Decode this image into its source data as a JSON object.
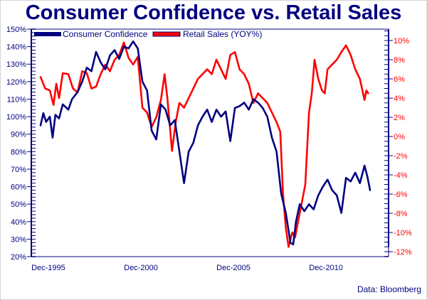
{
  "chart_data": {
    "type": "line",
    "title": "Consumer Confidence vs. Retail Sales",
    "source": "Data: Bloomberg",
    "x_tick_labels": [
      "Dec-1995",
      "Dec-2000",
      "Dec-2005",
      "Dec-2010"
    ],
    "x_tick_values": [
      1995.92,
      2000.92,
      2005.92,
      2010.92
    ],
    "xlim": [
      1995.0,
      2014.3
    ],
    "left_axis": {
      "ylim": [
        20,
        150
      ],
      "tick_values": [
        150,
        140,
        130,
        120,
        110,
        100,
        90,
        80,
        70,
        60,
        50,
        40,
        30,
        20
      ],
      "tick_labels": [
        "150%",
        "140%",
        "130%",
        "120%",
        "110%",
        "100%",
        "90%",
        "80%",
        "70%",
        "60%",
        "50%",
        "40%",
        "30%",
        "20%"
      ]
    },
    "right_axis": {
      "ylim": [
        -12,
        11.2
      ],
      "tick_values": [
        10,
        8,
        6,
        4,
        2,
        0,
        -2,
        -4,
        -6,
        -8,
        -10,
        -12
      ],
      "tick_labels": [
        "10%",
        "8%",
        "6%",
        "4%",
        "2%",
        "0%",
        "-2%",
        "-4%",
        "-6%",
        "-8%",
        "-10%",
        "-12%"
      ]
    },
    "legend": {
      "placement": "top-left",
      "entries": [
        "Consumer Confidence",
        "Retail Sales (YOY%)"
      ]
    },
    "colors": {
      "consumer_confidence": "#000080",
      "retail_sales": "#ff0000",
      "axis": "#000080",
      "frame": "#8080c0",
      "right_tick_label": "#ff0000"
    },
    "series": [
      {
        "name": "Consumer Confidence",
        "axis": "left",
        "x": [
          1995.5,
          1995.65,
          1995.8,
          1996.0,
          1996.15,
          1996.3,
          1996.5,
          1996.7,
          1997.0,
          1997.2,
          1997.5,
          1997.75,
          1998.0,
          1998.25,
          1998.5,
          1998.75,
          1999.0,
          1999.25,
          1999.5,
          1999.75,
          2000.0,
          2000.25,
          2000.5,
          2000.75,
          2001.0,
          2001.25,
          2001.5,
          2001.75,
          2002.0,
          2002.25,
          2002.5,
          2002.75,
          2003.0,
          2003.25,
          2003.5,
          2003.75,
          2004.0,
          2004.25,
          2004.5,
          2004.75,
          2005.0,
          2005.25,
          2005.5,
          2005.75,
          2006.0,
          2006.25,
          2006.5,
          2006.75,
          2007.0,
          2007.25,
          2007.5,
          2007.75,
          2008.0,
          2008.25,
          2008.5,
          2008.75,
          2009.0,
          2009.15,
          2009.3,
          2009.5,
          2009.75,
          2010.0,
          2010.25,
          2010.5,
          2010.75,
          2011.0,
          2011.25,
          2011.5,
          2011.75,
          2012.0,
          2012.25,
          2012.5,
          2012.75,
          2013.0,
          2013.15,
          2013.3
        ],
        "values": [
          95,
          102,
          97,
          100,
          88,
          101,
          99,
          107,
          104,
          110,
          114,
          120,
          128,
          126,
          137,
          131,
          127,
          135,
          138,
          133,
          140,
          139,
          143,
          139,
          120,
          115,
          92,
          87,
          107,
          104,
          95,
          98,
          80,
          62,
          80,
          85,
          95,
          100,
          104,
          97,
          104,
          100,
          103,
          86,
          105,
          106,
          108,
          104,
          110,
          108,
          105,
          100,
          88,
          80,
          56,
          45,
          28,
          27,
          40,
          50,
          46,
          50,
          47,
          55,
          60,
          64,
          58,
          55,
          45,
          65,
          63,
          68,
          62,
          72,
          66,
          58
        ],
        "ylabel_unit": "%"
      },
      {
        "name": "Retail Sales (YOY%)",
        "axis": "right",
        "x": [
          1995.5,
          1995.75,
          1996.0,
          1996.2,
          1996.35,
          1996.5,
          1996.7,
          1997.0,
          1997.25,
          1997.5,
          1997.75,
          1998.0,
          1998.25,
          1998.5,
          1998.75,
          1999.0,
          1999.25,
          1999.5,
          1999.75,
          2000.0,
          2000.25,
          2000.5,
          2000.75,
          2001.0,
          2001.25,
          2001.5,
          2001.75,
          2002.0,
          2002.2,
          2002.35,
          2002.6,
          2002.8,
          2003.0,
          2003.25,
          2003.5,
          2003.75,
          2004.0,
          2004.25,
          2004.5,
          2004.75,
          2005.0,
          2005.25,
          2005.5,
          2005.75,
          2006.0,
          2006.25,
          2006.5,
          2006.75,
          2007.0,
          2007.25,
          2007.5,
          2007.75,
          2008.0,
          2008.25,
          2008.45,
          2008.6,
          2008.75,
          2008.9,
          2009.1,
          2009.25,
          2009.45,
          2009.6,
          2009.8,
          2010.0,
          2010.15,
          2010.3,
          2010.5,
          2010.7,
          2010.85,
          2011.0,
          2011.25,
          2011.5,
          2011.75,
          2012.0,
          2012.25,
          2012.5,
          2012.75,
          2013.0,
          2013.1,
          2013.2
        ],
        "values": [
          6.2,
          5.0,
          4.8,
          3.3,
          5.5,
          4.0,
          6.6,
          6.5,
          5.0,
          4.6,
          6.8,
          6.6,
          5.0,
          5.2,
          6.5,
          7.5,
          6.8,
          8.0,
          8.5,
          9.8,
          8.2,
          7.5,
          8.3,
          3.0,
          2.5,
          1.0,
          2.0,
          3.8,
          6.5,
          4.0,
          -1.5,
          1.5,
          3.5,
          3.0,
          4.0,
          5.0,
          6.0,
          6.5,
          7.0,
          6.5,
          8.0,
          7.0,
          6.0,
          8.5,
          8.8,
          7.0,
          6.5,
          5.5,
          3.5,
          4.5,
          4.0,
          3.5,
          2.5,
          1.5,
          0.5,
          -6.0,
          -9.5,
          -11.5,
          -10.0,
          -10.5,
          -8.5,
          -7.0,
          -5.0,
          2.5,
          4.5,
          8.0,
          6.0,
          4.8,
          4.5,
          7.0,
          7.5,
          8.0,
          8.8,
          9.5,
          8.5,
          7.0,
          6.0,
          3.8,
          4.8,
          4.5
        ],
        "ylabel_unit": "%"
      }
    ]
  }
}
